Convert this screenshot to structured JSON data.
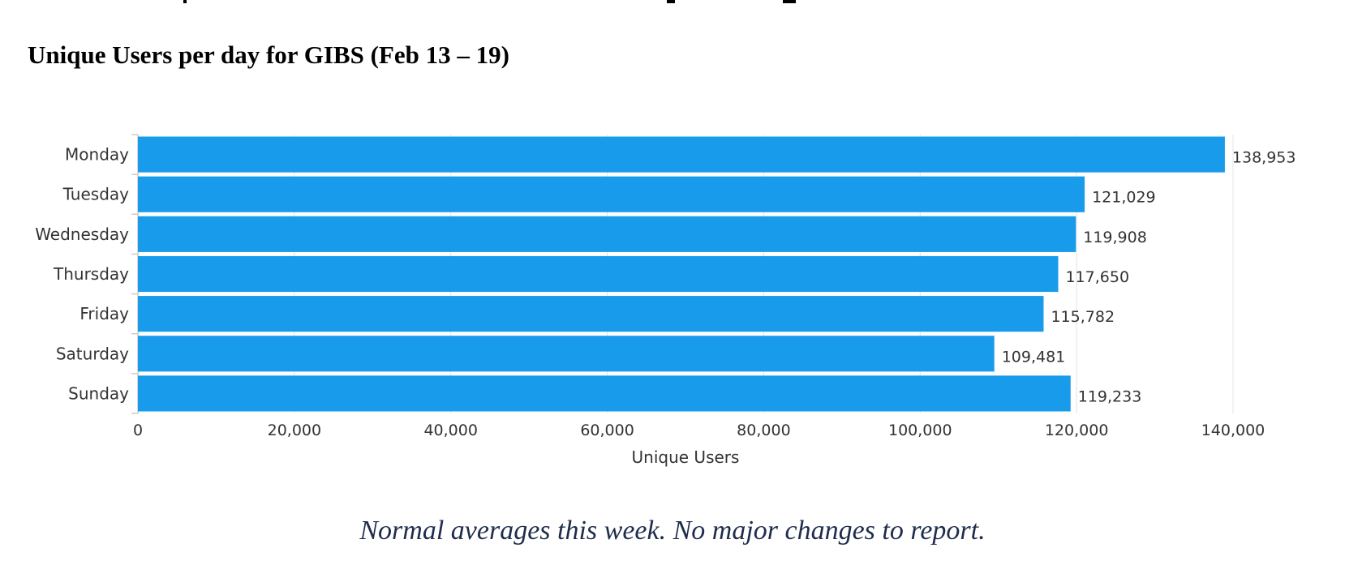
{
  "page": {
    "title": "Unique Users per day for GIBS (Feb 13 – 19)",
    "note": "Normal averages this week.  No major changes to report."
  },
  "chart_data": {
    "type": "bar",
    "orientation": "horizontal",
    "categories": [
      "Monday",
      "Tuesday",
      "Wednesday",
      "Thursday",
      "Friday",
      "Saturday",
      "Sunday"
    ],
    "values": [
      138953,
      121029,
      119908,
      117650,
      115782,
      109481,
      119233
    ],
    "value_labels": [
      "138,953",
      "121,029",
      "119,908",
      "117,650",
      "115,782",
      "109,481",
      "119,233"
    ],
    "xlabel": "Unique Users",
    "ylabel": "",
    "xlim": [
      0,
      140000
    ],
    "xticks": [
      0,
      20000,
      40000,
      60000,
      80000,
      100000,
      120000,
      140000
    ],
    "xtick_labels": [
      "0",
      "20,000",
      "40,000",
      "60,000",
      "80,000",
      "100,000",
      "120,000",
      "140,000"
    ],
    "grid": "vertical",
    "legend": "none",
    "bar_color": "#179bea",
    "grid_color": "#e4e4e4",
    "text_color": "#333333"
  }
}
